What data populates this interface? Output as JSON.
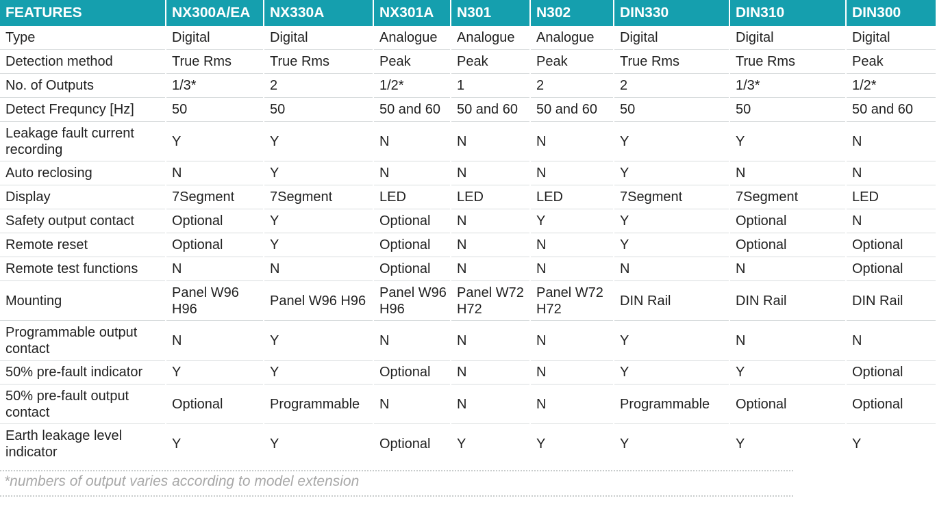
{
  "table": {
    "headers": [
      "FEATURES",
      "NX300A/EA",
      "NX330A",
      "NX301A",
      "N301",
      "N302",
      "DIN330",
      "DIN310",
      "DIN300"
    ],
    "rows": [
      [
        "Type",
        "Digital",
        "Digital",
        "Analogue",
        "Analogue",
        "Analogue",
        "Digital",
        "Digital",
        "Digital"
      ],
      [
        "Detection method",
        "True Rms",
        "True Rms",
        "Peak",
        "Peak",
        "Peak",
        "True Rms",
        "True Rms",
        "Peak"
      ],
      [
        "No. of Outputs",
        "1/3*",
        "2",
        "1/2*",
        "1",
        "2",
        "2",
        "1/3*",
        "1/2*"
      ],
      [
        "Detect Frequncy [Hz]",
        "50",
        "50",
        "50 and 60",
        "50 and 60",
        "50 and 60",
        "50",
        "50",
        "50 and 60"
      ],
      [
        "Leakage fault current recording",
        "Y",
        "Y",
        "N",
        "N",
        "N",
        "Y",
        "Y",
        "N"
      ],
      [
        "Auto reclosing",
        "N",
        "Y",
        "N",
        "N",
        "N",
        "Y",
        "N",
        "N"
      ],
      [
        "Display",
        "7Segment",
        "7Segment",
        "LED",
        "LED",
        "LED",
        "7Segment",
        "7Segment",
        "LED"
      ],
      [
        "Safety output contact",
        "Optional",
        "Y",
        "Optional",
        "N",
        "Y",
        "Y",
        "Optional",
        "N"
      ],
      [
        "Remote reset",
        "Optional",
        "Y",
        "Optional",
        "N",
        "N",
        "Y",
        "Optional",
        "Optional"
      ],
      [
        "Remote test functions",
        "N",
        "N",
        "Optional",
        "N",
        "N",
        "N",
        "N",
        "Optional"
      ],
      [
        "Mounting",
        "Panel W96 H96",
        "Panel W96 H96",
        "Panel W96 H96",
        "Panel W72 H72",
        "Panel W72 H72",
        "DIN Rail",
        "DIN Rail",
        "DIN Rail"
      ],
      [
        "Programmable output contact",
        "N",
        "Y",
        "N",
        "N",
        "N",
        "Y",
        "N",
        "N"
      ],
      [
        "50% pre-fault indicator",
        "Y",
        "Y",
        "Optional",
        "N",
        "N",
        "Y",
        "Y",
        "Optional"
      ],
      [
        "50% pre-fault output contact",
        "Optional",
        "Programmable",
        "N",
        "N",
        "N",
        "Programmable",
        "Optional",
        "Optional"
      ],
      [
        "Earth leakage level indicator",
        "Y",
        "Y",
        "Optional",
        "Y",
        "Y",
        "Y",
        "Y",
        "Y"
      ]
    ]
  },
  "footnote": "*numbers of output varies according to model extension",
  "colors": {
    "header_bg": "#159fae",
    "header_text": "#ffffff",
    "footnote_text": "#a8a8a8"
  }
}
